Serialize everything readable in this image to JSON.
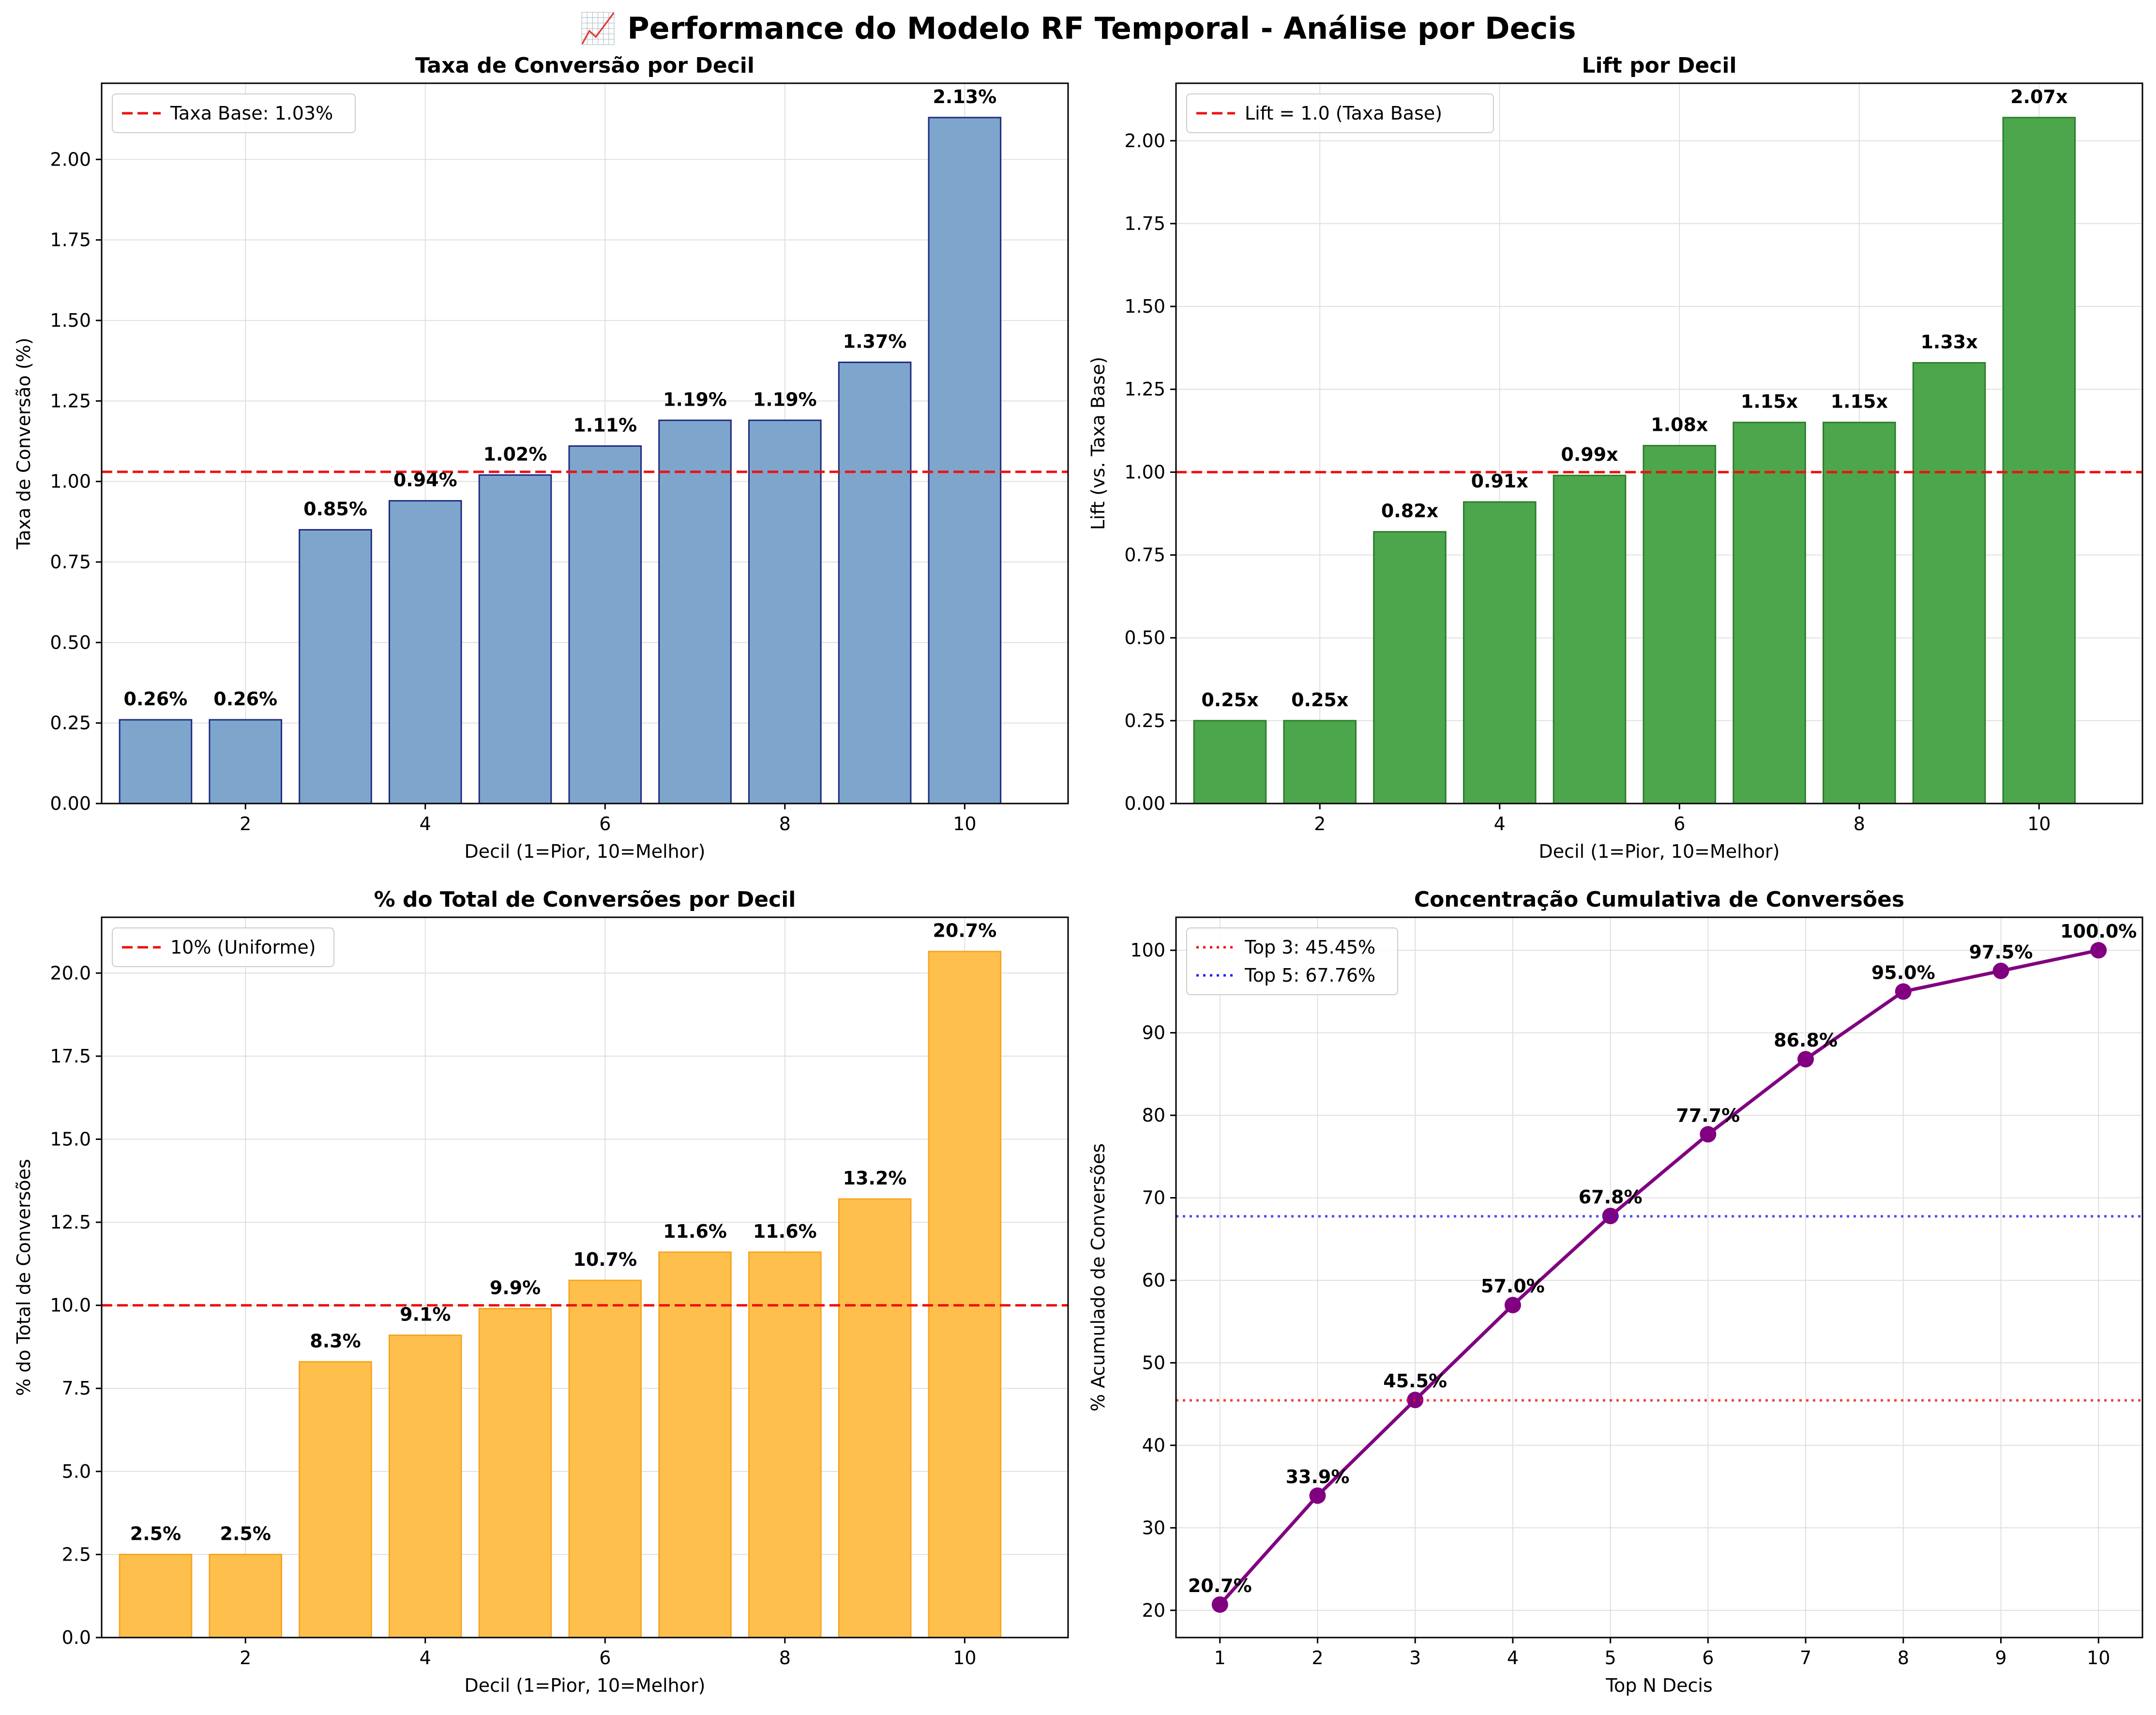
{
  "suptitle": "📈 Performance do Modelo RF Temporal - Análise por Decis",
  "colors": {
    "bar_blue": "#7ea6cc",
    "bar_blue_edge": "#1f2a80",
    "bar_green": "#4ca64c",
    "bar_green_edge": "#2e7d2e",
    "bar_orange": "#ffbf4d",
    "bar_orange_edge": "#f5a623",
    "line_purple": "#800080",
    "ref_red": "#ee1111",
    "ref_blue": "#2222ee"
  },
  "chart_data": [
    {
      "type": "bar",
      "title": "Taxa de Conversão por Decil",
      "xlabel": "Decil (1=Pior, 10=Melhor)",
      "ylabel": "Taxa de Conversão (%)",
      "x": [
        1,
        2,
        3,
        4,
        5,
        6,
        7,
        8,
        9,
        10
      ],
      "values": [
        0.26,
        0.26,
        0.85,
        0.94,
        1.02,
        1.11,
        1.19,
        1.19,
        1.37,
        2.13
      ],
      "value_labels": [
        "0.26%",
        "0.26%",
        "0.85%",
        "0.94%",
        "1.02%",
        "1.11%",
        "1.19%",
        "1.19%",
        "1.37%",
        "2.13%"
      ],
      "xlim": [
        0.4,
        11.15
      ],
      "ylim": [
        0,
        2.2365
      ],
      "xticks": [
        2,
        4,
        6,
        8,
        10
      ],
      "xtick_labels": [
        "2",
        "4",
        "6",
        "8",
        "10"
      ],
      "yticks": [
        0,
        0.25,
        0.5,
        0.75,
        1.0,
        1.25,
        1.5,
        1.75,
        2.0
      ],
      "ytick_labels": [
        "0.00",
        "0.25",
        "0.50",
        "0.75",
        "1.00",
        "1.25",
        "1.50",
        "1.75",
        "2.00"
      ],
      "reference_lines": [
        {
          "y": 1.03,
          "style": "dashed",
          "color": "#ee1111",
          "label": "Taxa Base: 1.03%"
        }
      ],
      "legend": "top-left",
      "grid": true
    },
    {
      "type": "bar",
      "title": "Lift por Decil",
      "xlabel": "Decil (1=Pior, 10=Melhor)",
      "ylabel": "Lift (vs. Taxa Base)",
      "x": [
        1,
        2,
        3,
        4,
        5,
        6,
        7,
        8,
        9,
        10
      ],
      "values": [
        0.25,
        0.25,
        0.82,
        0.91,
        0.99,
        1.08,
        1.15,
        1.15,
        1.33,
        2.07
      ],
      "value_labels": [
        "0.25x",
        "0.25x",
        "0.82x",
        "0.91x",
        "0.99x",
        "1.08x",
        "1.15x",
        "1.15x",
        "1.33x",
        "2.07x"
      ],
      "xlim": [
        0.4,
        11.15
      ],
      "ylim": [
        0,
        2.1735
      ],
      "xticks": [
        2,
        4,
        6,
        8,
        10
      ],
      "xtick_labels": [
        "2",
        "4",
        "6",
        "8",
        "10"
      ],
      "yticks": [
        0,
        0.25,
        0.5,
        0.75,
        1.0,
        1.25,
        1.5,
        1.75,
        2.0
      ],
      "ytick_labels": [
        "0.00",
        "0.25",
        "0.50",
        "0.75",
        "1.00",
        "1.25",
        "1.50",
        "1.75",
        "2.00"
      ],
      "reference_lines": [
        {
          "y": 1.0,
          "style": "dashed",
          "color": "#ee1111",
          "label": "Lift = 1.0 (Taxa Base)"
        }
      ],
      "legend": "top-left",
      "grid": true
    },
    {
      "type": "bar",
      "title": "% do Total de Conversões por Decil",
      "xlabel": "Decil (1=Pior, 10=Melhor)",
      "ylabel": "% do Total de Conversões",
      "x": [
        1,
        2,
        3,
        4,
        5,
        6,
        7,
        8,
        9,
        10
      ],
      "values": [
        2.5,
        2.5,
        8.3,
        9.1,
        9.9,
        10.75,
        11.6,
        11.6,
        13.2,
        20.65
      ],
      "value_labels": [
        "2.5%",
        "2.5%",
        "8.3%",
        "9.1%",
        "9.9%",
        "10.7%",
        "11.6%",
        "11.6%",
        "13.2%",
        "20.7%"
      ],
      "xlim": [
        0.4,
        11.15
      ],
      "ylim": [
        0,
        21.68
      ],
      "xticks": [
        2,
        4,
        6,
        8,
        10
      ],
      "xtick_labels": [
        "2",
        "4",
        "6",
        "8",
        "10"
      ],
      "yticks": [
        0,
        2.5,
        5,
        7.5,
        10,
        12.5,
        15,
        17.5,
        20
      ],
      "ytick_labels": [
        "0.0",
        "2.5",
        "5.0",
        "7.5",
        "10.0",
        "12.5",
        "15.0",
        "17.5",
        "20.0"
      ],
      "reference_lines": [
        {
          "y": 10,
          "style": "dashed",
          "color": "#ee1111",
          "label": "10% (Uniforme)"
        }
      ],
      "legend": "top-left",
      "grid": true
    },
    {
      "type": "line",
      "title": "Concentração Cumulativa de Conversões",
      "xlabel": "Top N Decis",
      "ylabel": "% Acumulado de Conversões",
      "x": [
        1,
        2,
        3,
        4,
        5,
        6,
        7,
        8,
        9,
        10
      ],
      "values": [
        20.7,
        33.9,
        45.5,
        57.0,
        67.8,
        77.7,
        86.8,
        95.0,
        97.5,
        100.0
      ],
      "value_labels": [
        "20.7%",
        "33.9%",
        "45.5%",
        "57.0%",
        "67.8%",
        "77.7%",
        "86.8%",
        "95.0%",
        "97.5%",
        "100.0%"
      ],
      "xlim": [
        0.55,
        10.45
      ],
      "ylim": [
        16.7,
        104.0
      ],
      "xticks": [
        1,
        2,
        3,
        4,
        5,
        6,
        7,
        8,
        9,
        10
      ],
      "xtick_labels": [
        "1",
        "2",
        "3",
        "4",
        "5",
        "6",
        "7",
        "8",
        "9",
        "10"
      ],
      "yticks": [
        20,
        30,
        40,
        50,
        60,
        70,
        80,
        90,
        100
      ],
      "ytick_labels": [
        "20",
        "30",
        "40",
        "50",
        "60",
        "70",
        "80",
        "90",
        "100"
      ],
      "reference_lines": [
        {
          "y": 45.45,
          "style": "dotted",
          "color": "#ee1111",
          "label": "Top 3: 45.45%"
        },
        {
          "y": 67.76,
          "style": "dotted",
          "color": "#2222ee",
          "label": "Top 5: 67.76%"
        }
      ],
      "legend": "top-left",
      "grid": true
    }
  ]
}
